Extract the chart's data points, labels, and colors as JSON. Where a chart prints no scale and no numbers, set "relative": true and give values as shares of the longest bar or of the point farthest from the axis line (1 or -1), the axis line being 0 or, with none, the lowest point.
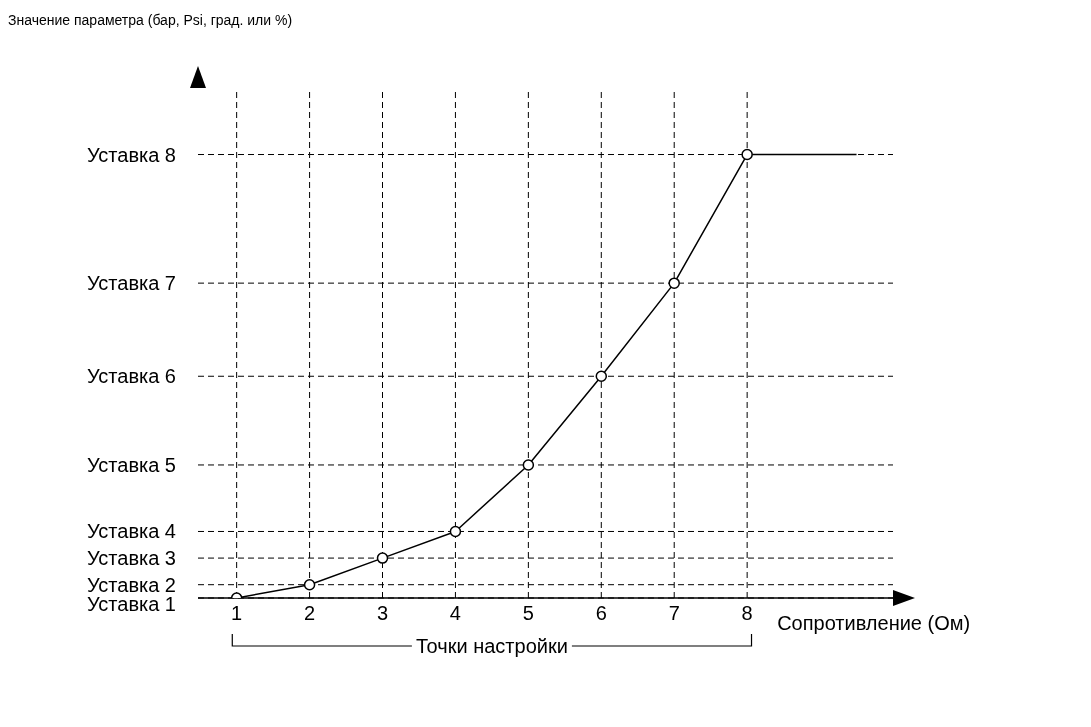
{
  "chart_data": {
    "type": "line",
    "relative": true,
    "title": "Значение параметра (бар, Psi, град. или %)",
    "xlabel": "Сопротивление (Ом)",
    "xlim": [
      0.47,
      10
    ],
    "xticks": [
      1,
      2,
      3,
      4,
      5,
      6,
      7,
      8
    ],
    "grid": false,
    "series": [
      {
        "x": [
          1,
          2,
          3,
          4,
          5,
          6,
          7,
          8
        ],
        "values": [
          0,
          0.03,
          0.09,
          0.15,
          0.3,
          0.5,
          0.71,
          1
        ],
        "color": "#000000",
        "marker": "circle",
        "line_style": "solid"
      },
      {
        "x": [
          8,
          9.5
        ],
        "values": [
          1,
          1
        ],
        "color": "#000000",
        "marker": "none",
        "line_style": "solid"
      }
    ],
    "ref_lines": [
      {
        "axis": "y",
        "value": 0,
        "label": "Уставка 1",
        "color": "#000000",
        "line_style": "dashed"
      },
      {
        "axis": "y",
        "value": 0.03,
        "label": "Уставка 2",
        "color": "#000000",
        "line_style": "dashed"
      },
      {
        "axis": "y",
        "value": 0.09,
        "label": "Уставка 3",
        "color": "#000000",
        "line_style": "dashed"
      },
      {
        "axis": "y",
        "value": 0.15,
        "label": "Уставка 4",
        "color": "#000000",
        "line_style": "dashed"
      },
      {
        "axis": "y",
        "value": 0.3,
        "label": "Уставка 5",
        "color": "#000000",
        "line_style": "dashed"
      },
      {
        "axis": "y",
        "value": 0.5,
        "label": "Уставка 6",
        "color": "#000000",
        "line_style": "dashed"
      },
      {
        "axis": "y",
        "value": 0.71,
        "label": "Уставка 7",
        "color": "#000000",
        "line_style": "dashed"
      },
      {
        "axis": "y",
        "value": 1,
        "label": "Уставка 8",
        "color": "#000000",
        "line_style": "dashed"
      },
      {
        "axis": "x",
        "value": 1,
        "color": "#000000",
        "line_style": "dashed"
      },
      {
        "axis": "x",
        "value": 2,
        "color": "#000000",
        "line_style": "dashed"
      },
      {
        "axis": "x",
        "value": 3,
        "color": "#000000",
        "line_style": "dashed"
      },
      {
        "axis": "x",
        "value": 4,
        "color": "#000000",
        "line_style": "dashed"
      },
      {
        "axis": "x",
        "value": 5,
        "color": "#000000",
        "line_style": "dashed"
      },
      {
        "axis": "x",
        "value": 6,
        "color": "#000000",
        "line_style": "dashed"
      },
      {
        "axis": "x",
        "value": 7,
        "color": "#000000",
        "line_style": "dashed"
      },
      {
        "axis": "x",
        "value": 8,
        "color": "#000000",
        "line_style": "dashed"
      }
    ],
    "annotations": [
      "Точки настройки"
    ]
  }
}
